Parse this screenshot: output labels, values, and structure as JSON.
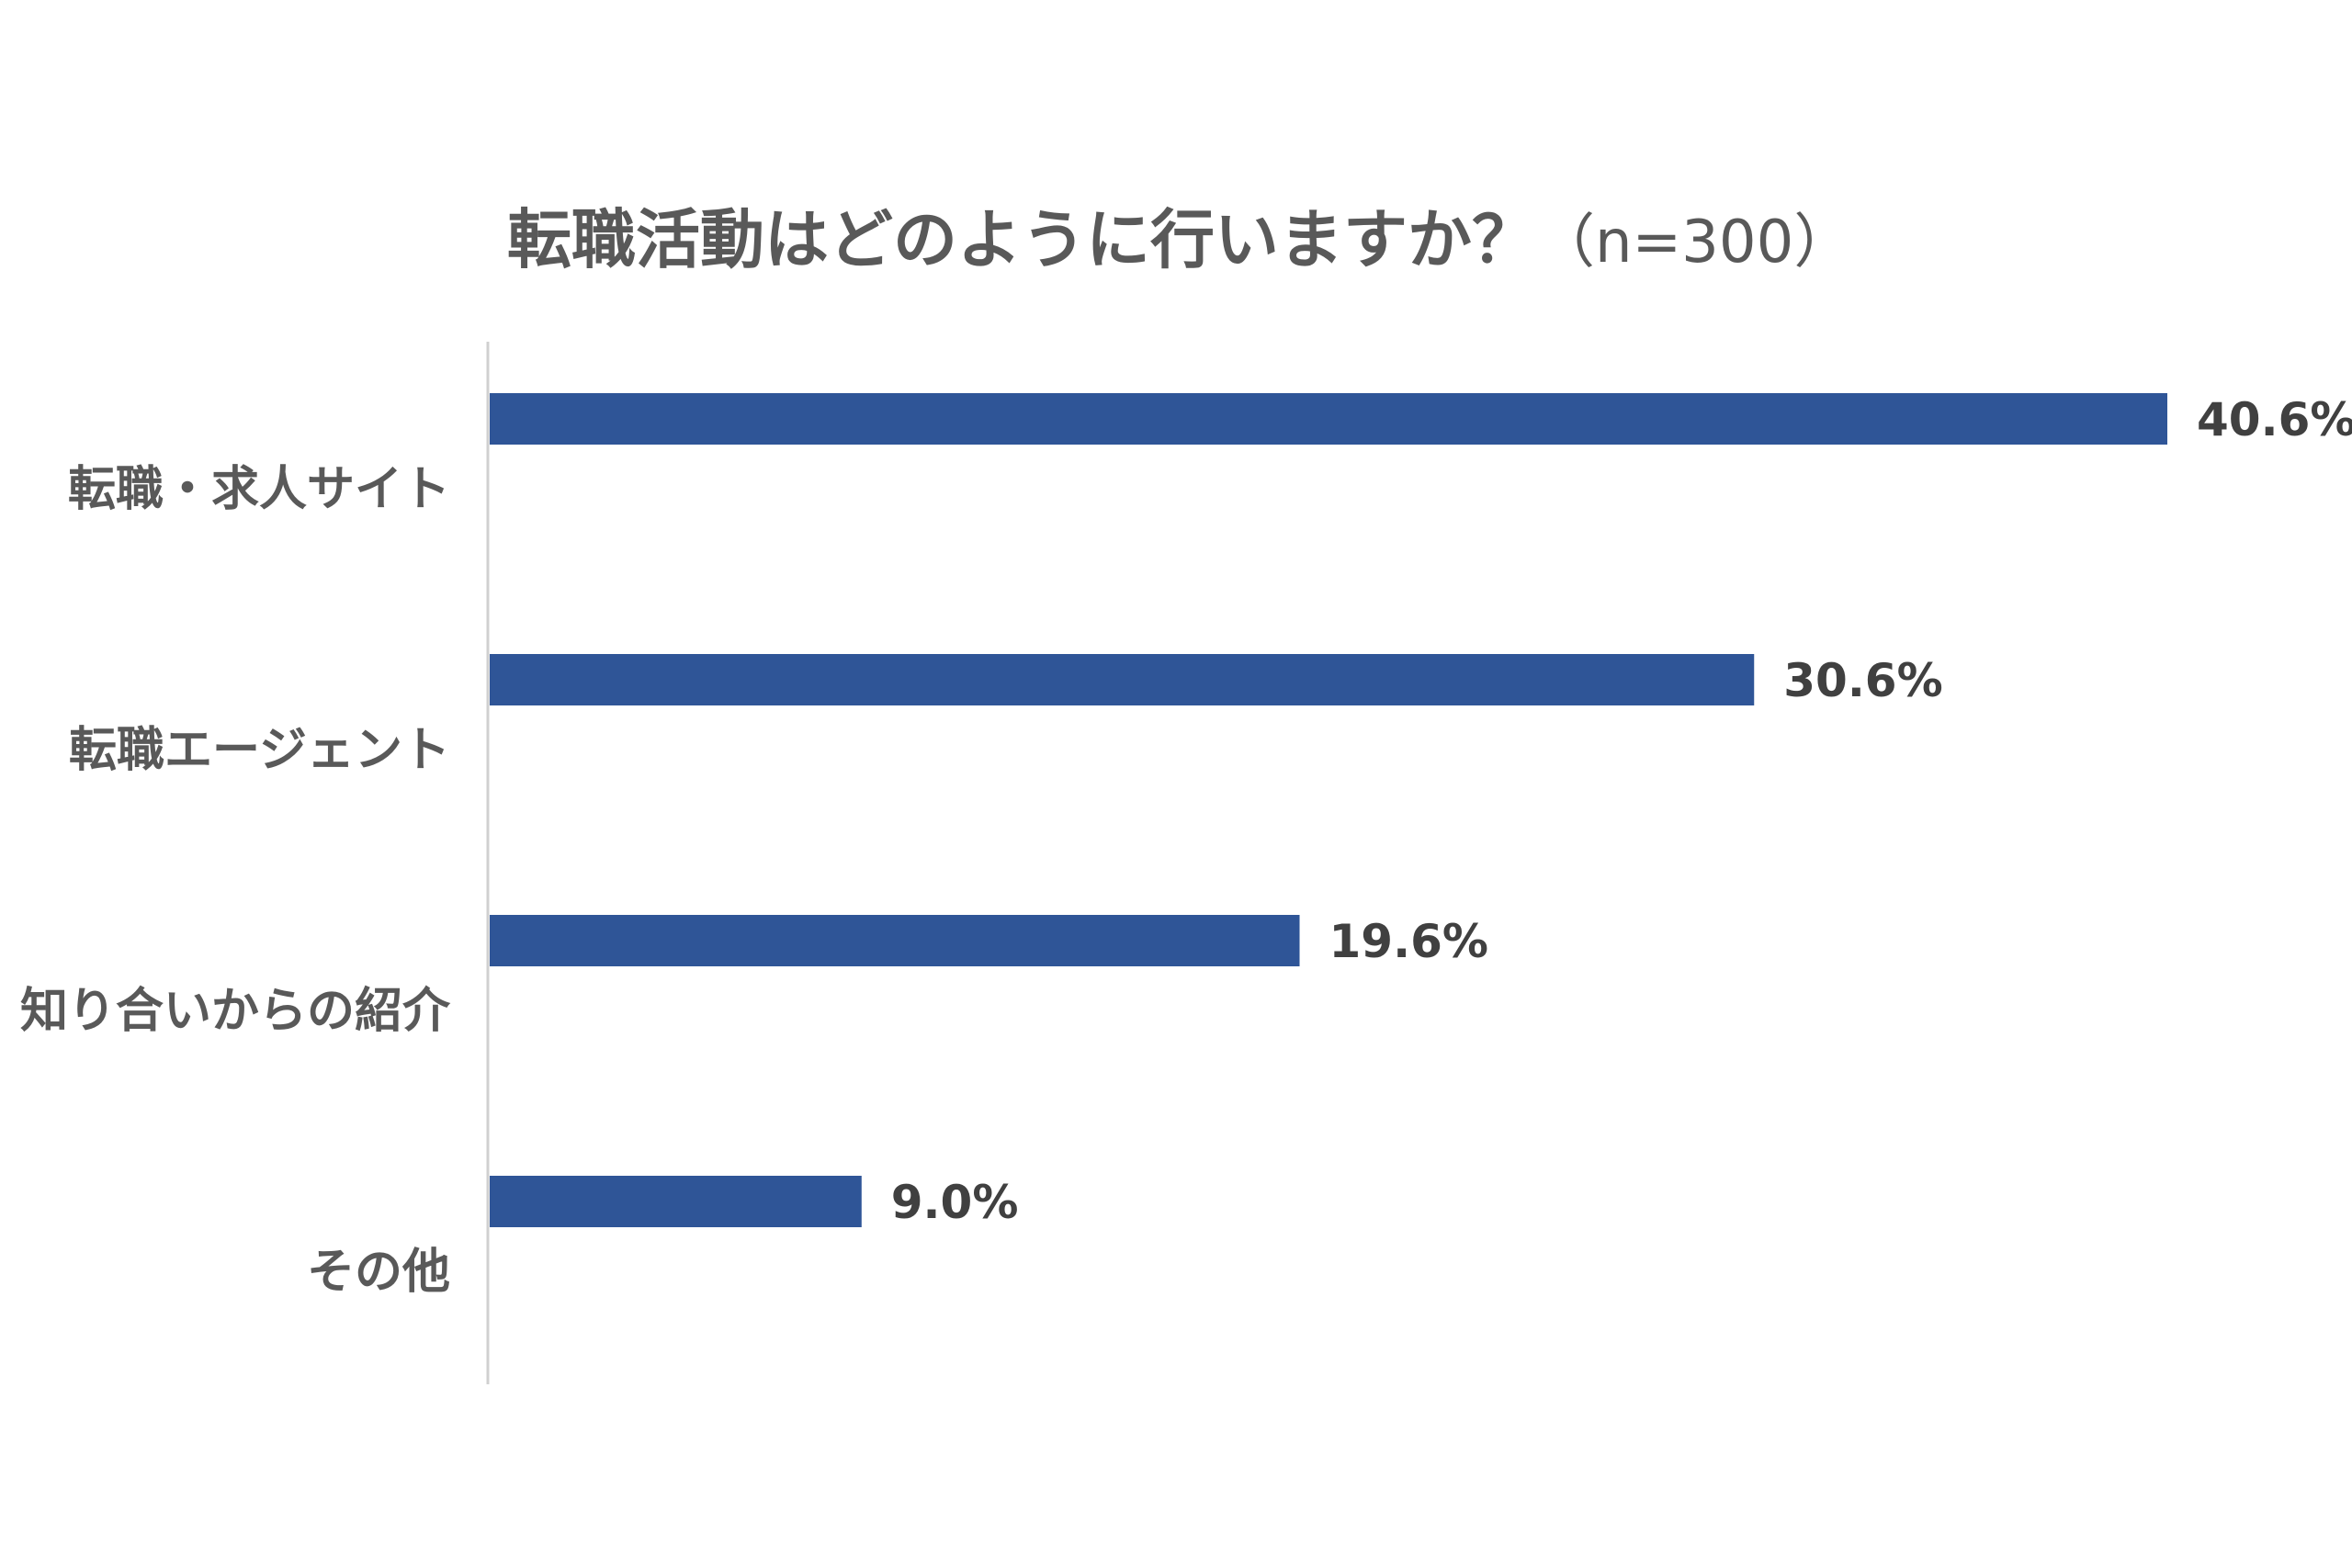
{
  "colors": {
    "bar": "#2f5597",
    "axis": "#d0d0d0",
    "title": "#595959",
    "category_text": "#595959",
    "value_text": "#404040",
    "background": "#ffffff"
  },
  "chart_data": {
    "type": "bar",
    "orientation": "horizontal",
    "title": "転職活動はどのように行いますか？",
    "subtitle": "（n=300）",
    "categories": [
      "転職・求人サイト",
      "転職エージェント",
      "知り合いからの紹介",
      "その他"
    ],
    "values": [
      40.6,
      30.6,
      19.6,
      9.0
    ],
    "data_labels": [
      "40.6%",
      "30.6%",
      "19.6%",
      "9.0%"
    ],
    "xlabel": "",
    "ylabel": "",
    "xlim": [
      0,
      40.6
    ],
    "grid": false,
    "legend": "none"
  }
}
